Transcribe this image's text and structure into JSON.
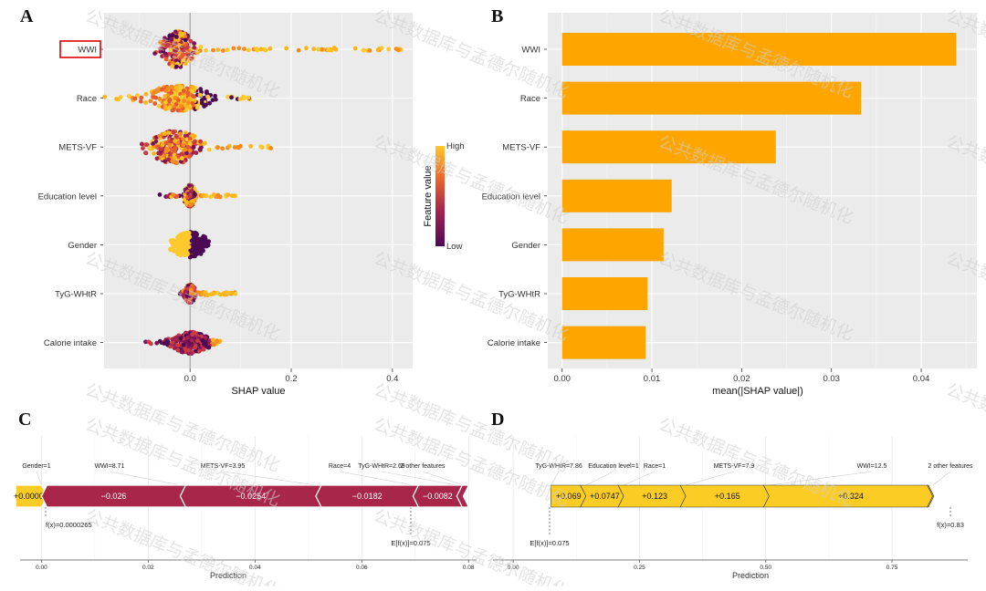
{
  "colors": {
    "panel_bg": "#ebebeb",
    "grid": "#ffffff",
    "bar": "#ffa500",
    "neg_force": "#a8264a",
    "pos_force": "#fbcd24",
    "high": "#fec92c",
    "low": "#4c0a55",
    "highlight_box": "#e00000"
  },
  "watermark": "公共数据库与孟德尔随机化",
  "panels": {
    "a": "A",
    "b": "B",
    "c": "C",
    "d": "D"
  },
  "chart_data": [
    {
      "panel": "A",
      "type": "scatter",
      "subtype": "shap-beeswarm",
      "features": [
        "WWI",
        "Race",
        "METS-VF",
        "Education level",
        "Gender",
        "TyG-WHtR",
        "Calorie intake"
      ],
      "highlighted_feature": "WWI",
      "xlabel": "SHAP value",
      "xticks": [
        "0.0",
        "0.2",
        "0.4"
      ],
      "xlim": [
        -0.17,
        0.44
      ],
      "legend": {
        "title": "Feature value",
        "high": "High",
        "low": "Low",
        "placement": "right"
      },
      "series": [
        {
          "name": "WWI",
          "min": -0.08,
          "max": 0.42,
          "core": [
            -0.06,
            0.0
          ]
        },
        {
          "name": "Race",
          "min": -0.17,
          "max": 0.13,
          "core": [
            -0.07,
            0.09
          ]
        },
        {
          "name": "METS-VF",
          "min": -0.1,
          "max": 0.16,
          "core": [
            -0.08,
            0.05
          ]
        },
        {
          "name": "Education level",
          "min": -0.06,
          "max": 0.09,
          "core": [
            -0.02,
            0.04
          ]
        },
        {
          "name": "Gender",
          "min": -0.04,
          "max": 0.04,
          "core": [
            -0.03,
            0.04
          ]
        },
        {
          "name": "TyG-WHtR",
          "min": -0.02,
          "max": 0.09,
          "core": [
            -0.02,
            0.03
          ]
        },
        {
          "name": "Calorie intake",
          "min": -0.09,
          "max": 0.06,
          "core": [
            -0.04,
            0.06
          ]
        }
      ]
    },
    {
      "panel": "B",
      "type": "bar",
      "orientation": "horizontal",
      "categories": [
        "WWI",
        "Race",
        "METS-VF",
        "Education level",
        "Gender",
        "TyG-WHtR",
        "Calorie intake"
      ],
      "values": [
        0.0439,
        0.0333,
        0.0238,
        0.0122,
        0.0113,
        0.0095,
        0.0093
      ],
      "xlabel": "mean(|SHAP value|)",
      "xticks": [
        "0.00",
        "0.01",
        "0.02",
        "0.03",
        "0.04"
      ],
      "xlim": [
        -0.0016,
        0.0462
      ]
    },
    {
      "panel": "C",
      "type": "bar",
      "subtype": "shap-force",
      "xlabel": "Prediction",
      "xticks": [
        "0.00",
        "0.02",
        "0.04",
        "0.06",
        "0.08"
      ],
      "xlim": [
        -0.004,
        0.0815
      ],
      "features": [
        {
          "label": "Gender=1",
          "value": "+0.0000",
          "start": -0.0048,
          "end": 2.65e-05
        },
        {
          "label": "WWI=8.71",
          "value": "−0.026",
          "start": 2.65e-05,
          "end": 0.026
        },
        {
          "label": "METS-VF=3.95",
          "value": "−0.0254",
          "start": 0.026,
          "end": 0.0514
        },
        {
          "label": "Race=4",
          "value": "−0.0182",
          "start": 0.0514,
          "end": 0.0696
        },
        {
          "label": "TyG-WHtR=2.69",
          "value": "−0.0082",
          "start": 0.0696,
          "end": 0.0778
        },
        {
          "label": "2 other features",
          "value": "",
          "start": 0.0778,
          "end": 0.079
        }
      ],
      "fx_label": "f(x)=0.0000265",
      "ef_label": "E[f(x)]=0.075"
    },
    {
      "panel": "D",
      "type": "bar",
      "subtype": "shap-force",
      "xlabel": "Prediction",
      "xticks": [
        "0.00",
        "0.25",
        "0.50",
        "0.75"
      ],
      "xlim": [
        -0.04,
        0.9
      ],
      "features": [
        {
          "label": "TyG-WHtR=7.86",
          "value": "+0.069",
          "start": 0.075,
          "end": 0.144
        },
        {
          "label": "Education level=1",
          "value": "+0.0747",
          "start": 0.144,
          "end": 0.2187
        },
        {
          "label": "Race=1",
          "value": "+0.123",
          "start": 0.2187,
          "end": 0.3417
        },
        {
          "label": "METS-VF=7.9",
          "value": "+0.165",
          "start": 0.3417,
          "end": 0.5067
        },
        {
          "label": "WWI=12.5",
          "value": "+0.324",
          "start": 0.5067,
          "end": 0.8307
        },
        {
          "label": "2 other features",
          "value": "",
          "start": 0.8307,
          "end": 0.833
        }
      ],
      "fx_label": "f(x)=0.83",
      "ef_label": "E[f(x)]=0.075"
    }
  ]
}
